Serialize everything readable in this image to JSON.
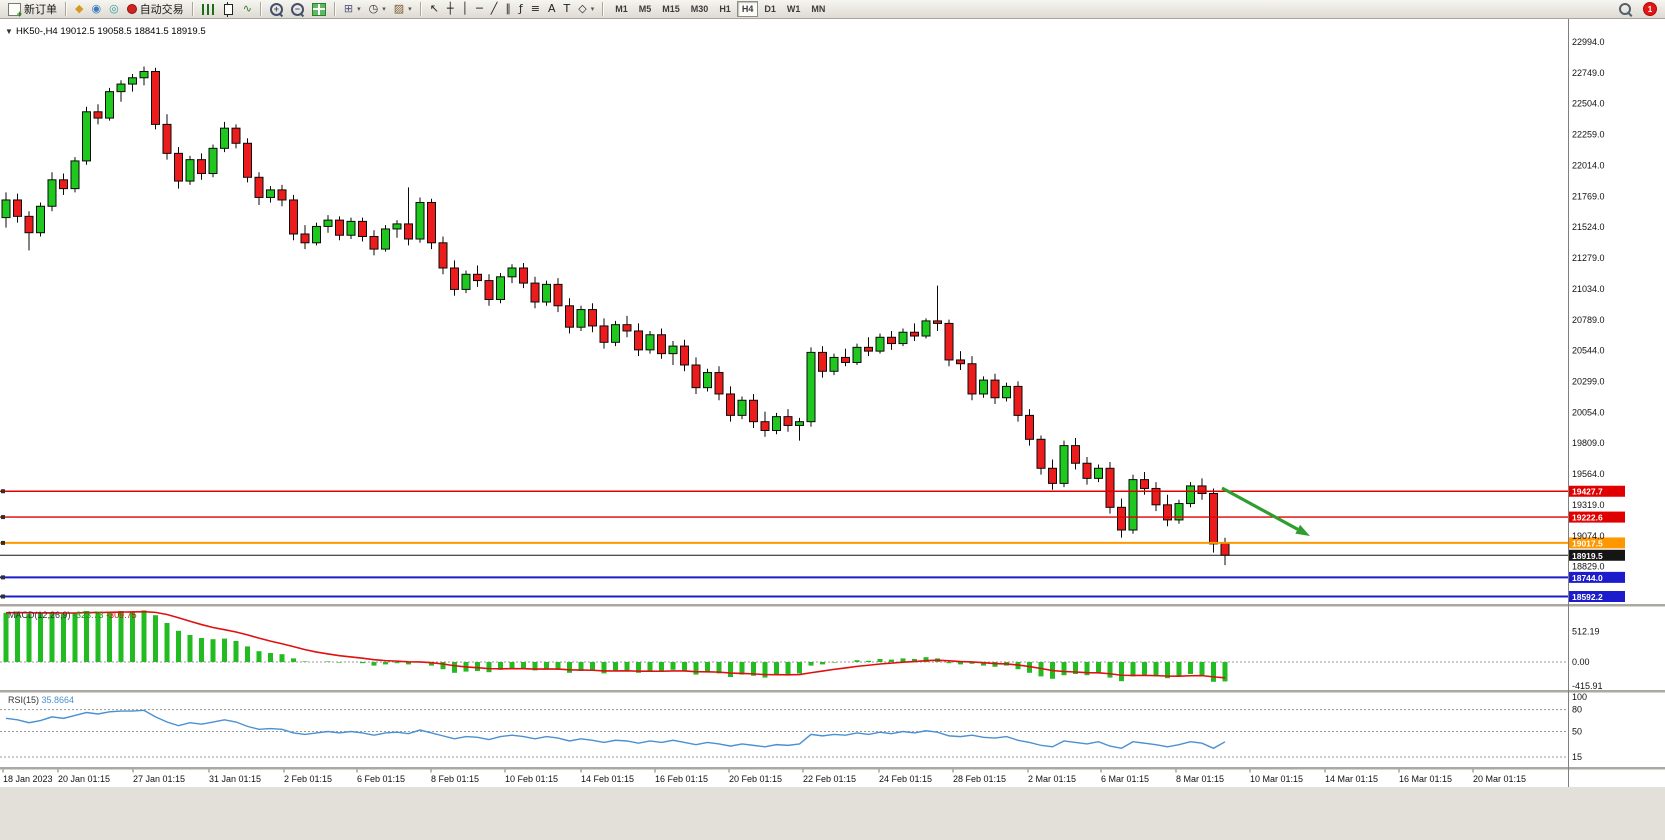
{
  "toolbar": {
    "dropdown_glyph": "▾",
    "timeframes": [
      "M1",
      "M5",
      "M15",
      "M30",
      "H1",
      "H4",
      "D1",
      "W1",
      "MN"
    ],
    "active_timeframe": "H4",
    "notification_count": "1",
    "tools": [
      {
        "name": "new-order-button",
        "label": "新订单",
        "icon": "neworder"
      },
      {
        "name": "sep1",
        "sep": true
      },
      {
        "name": "chart-wizard-icon",
        "glyph": "◆",
        "color": "#d79a20"
      },
      {
        "name": "market-watch-icon",
        "glyph": "◉",
        "color": "#3a7abf"
      },
      {
        "name": "strategy-tester-icon",
        "glyph": "◎",
        "color": "#2f9e9e"
      },
      {
        "name": "autotrading-button",
        "label": "自动交易",
        "icon": "power"
      },
      {
        "name": "sep2",
        "sep": true
      },
      {
        "name": "bar-chart-icon",
        "cssicon": "bars"
      },
      {
        "name": "candlestick-chart-icon",
        "cssicon": "candle"
      },
      {
        "name": "line-chart-icon",
        "glyph": "∿",
        "color": "#2e7d32"
      },
      {
        "name": "sep3",
        "sep": true
      },
      {
        "name": "zoom-in-icon",
        "cssicon": "zoomin"
      },
      {
        "name": "zoom-out-icon",
        "cssicon": "zoomout"
      },
      {
        "name": "tile-windows-icon",
        "cssicon": "grid"
      },
      {
        "name": "sep4",
        "sep": true
      },
      {
        "name": "new-chart-icon",
        "glyph": "⊞",
        "color": "#56567e",
        "dropdown": true
      },
      {
        "name": "period-icon",
        "glyph": "◷",
        "color": "#333333",
        "dropdown": true
      },
      {
        "name": "templates-icon",
        "glyph": "▨",
        "color": "#7a5a2a",
        "dropdown": true
      },
      {
        "name": "sep5",
        "sep": true
      },
      {
        "name": "cursor-icon",
        "glyph": "↖",
        "color": "#222222"
      },
      {
        "name": "crosshair-icon",
        "glyph": "┼",
        "color": "#222222"
      },
      {
        "name": "vertical-line-icon",
        "glyph": "│",
        "color": "#222222"
      },
      {
        "name": "horizontal-line-icon",
        "glyph": "─",
        "color": "#222222"
      },
      {
        "name": "trendline-icon",
        "glyph": "╱",
        "color": "#222222"
      },
      {
        "name": "channel-icon",
        "glyph": "∥",
        "color": "#222222"
      },
      {
        "name": "fibonacci-icon",
        "glyph": "ƒ",
        "color": "#222222"
      },
      {
        "name": "shapes-icon",
        "glyph": "≡",
        "color": "#222222"
      },
      {
        "name": "text-icon",
        "glyph": "A",
        "color": "#222222"
      },
      {
        "name": "arrows-icon",
        "glyph": "T",
        "color": "#222222"
      },
      {
        "name": "objects-dropdown-icon",
        "glyph": "◇",
        "color": "#222222",
        "dropdown": true
      },
      {
        "name": "sep6",
        "sep": true
      }
    ]
  },
  "chart": {
    "oneclick_glyph": "▼",
    "symbol": "HK50-,H4",
    "ohlc_text": "19012.5 19058.5 18841.5 18919.5",
    "price_axis_labels": [
      "22994.0",
      "22749.0",
      "22504.0",
      "22259.0",
      "22014.0",
      "21769.0",
      "21524.0",
      "21279.0",
      "21034.0",
      "20789.0",
      "20544.0",
      "20299.0",
      "20054.0",
      "19809.0",
      "19564.0",
      "19319.0",
      "19074.0",
      "18829.0"
    ],
    "levels": [
      {
        "price": "19427.7",
        "value": 19427.7,
        "color": "#e00000",
        "width": 1.4,
        "is_current": false
      },
      {
        "price": "19222.6",
        "value": 19222.6,
        "color": "#e00000",
        "width": 1.4,
        "is_current": false
      },
      {
        "price": "19017.5",
        "value": 19017.5,
        "color": "#ff9800",
        "width": 2,
        "is_current": false
      },
      {
        "price": "18919.5",
        "value": 18919.5,
        "color": "#151515",
        "width": 1,
        "is_current": true
      },
      {
        "price": "18744.0",
        "value": 18744.0,
        "color": "#1c1ccc",
        "width": 2,
        "is_current": false
      },
      {
        "price": "18592.2",
        "value": 18592.2,
        "color": "#1c1ccc",
        "width": 2,
        "is_current": false
      }
    ],
    "time_axis": [
      {
        "label": "18 Jan 2023",
        "x": 3
      },
      {
        "label": "20 Jan 01:15",
        "x": 58
      },
      {
        "label": "27 Jan 01:15",
        "x": 133
      },
      {
        "label": "31 Jan 01:15",
        "x": 209
      },
      {
        "label": "2 Feb 01:15",
        "x": 284
      },
      {
        "label": "6 Feb 01:15",
        "x": 357
      },
      {
        "label": "8 Feb 01:15",
        "x": 431
      },
      {
        "label": "10 Feb 01:15",
        "x": 505
      },
      {
        "label": "14 Feb 01:15",
        "x": 581
      },
      {
        "label": "16 Feb 01:15",
        "x": 655
      },
      {
        "label": "20 Feb 01:15",
        "x": 729
      },
      {
        "label": "22 Feb 01:15",
        "x": 803
      },
      {
        "label": "24 Feb 01:15",
        "x": 879
      },
      {
        "label": "28 Feb 01:15",
        "x": 953
      },
      {
        "label": "2 Mar 01:15",
        "x": 1028
      },
      {
        "label": "6 Mar 01:15",
        "x": 1101
      },
      {
        "label": "8 Mar 01:15",
        "x": 1176
      },
      {
        "label": "10 Mar 01:15",
        "x": 1250
      },
      {
        "label": "14 Mar 01:15",
        "x": 1325
      },
      {
        "label": "16 Mar 01:15",
        "x": 1399
      },
      {
        "label": "20 Mar 01:15",
        "x": 1473
      }
    ],
    "annotation_arrow": {
      "color": "#2f9e2f",
      "from": [
        1222,
        488
      ],
      "to": [
        1310,
        536
      ]
    },
    "colors": {
      "bull": "#1fc81f",
      "bear": "#ed1c1c",
      "outline": "#0a0a0a",
      "macd_hist": "#22bb22",
      "macd_signal": "#e01010",
      "rsi_line": "#4a90d2",
      "dash": "#9a9a9a"
    }
  },
  "chart_data": [
    {
      "type": "candlestick",
      "name": "HK50- H4 price",
      "ylim": [
        18592,
        23000
      ],
      "y_tick_step": 245,
      "ohlc": [
        [
          21600,
          21800,
          21520,
          21740
        ],
        [
          21740,
          21790,
          21560,
          21610
        ],
        [
          21610,
          21650,
          21340,
          21480
        ],
        [
          21480,
          21720,
          21450,
          21690
        ],
        [
          21690,
          21960,
          21650,
          21900
        ],
        [
          21900,
          21950,
          21780,
          21830
        ],
        [
          21830,
          22080,
          21800,
          22050
        ],
        [
          22050,
          22480,
          22020,
          22440
        ],
        [
          22440,
          22500,
          22340,
          22390
        ],
        [
          22390,
          22630,
          22370,
          22600
        ],
        [
          22600,
          22690,
          22520,
          22660
        ],
        [
          22660,
          22740,
          22600,
          22710
        ],
        [
          22710,
          22800,
          22650,
          22760
        ],
        [
          22760,
          22790,
          22300,
          22340
        ],
        [
          22340,
          22420,
          22060,
          22110
        ],
        [
          22110,
          22160,
          21830,
          21890
        ],
        [
          21890,
          22090,
          21860,
          22060
        ],
        [
          22060,
          22110,
          21900,
          21950
        ],
        [
          21950,
          22180,
          21920,
          22150
        ],
        [
          22150,
          22360,
          22120,
          22310
        ],
        [
          22310,
          22340,
          22150,
          22190
        ],
        [
          22190,
          22230,
          21880,
          21920
        ],
        [
          21920,
          21960,
          21700,
          21760
        ],
        [
          21760,
          21850,
          21720,
          21820
        ],
        [
          21820,
          21860,
          21690,
          21740
        ],
        [
          21740,
          21780,
          21420,
          21470
        ],
        [
          21470,
          21540,
          21350,
          21400
        ],
        [
          21400,
          21560,
          21380,
          21530
        ],
        [
          21530,
          21620,
          21480,
          21580
        ],
        [
          21580,
          21610,
          21420,
          21460
        ],
        [
          21460,
          21600,
          21430,
          21570
        ],
        [
          21570,
          21600,
          21410,
          21450
        ],
        [
          21450,
          21500,
          21300,
          21350
        ],
        [
          21350,
          21540,
          21330,
          21510
        ],
        [
          21510,
          21580,
          21440,
          21550
        ],
        [
          21550,
          21840,
          21380,
          21430
        ],
        [
          21430,
          21760,
          21400,
          21720
        ],
        [
          21720,
          21750,
          21350,
          21400
        ],
        [
          21400,
          21450,
          21150,
          21200
        ],
        [
          21200,
          21260,
          20980,
          21030
        ],
        [
          21030,
          21180,
          21000,
          21150
        ],
        [
          21150,
          21220,
          21050,
          21100
        ],
        [
          21100,
          21150,
          20900,
          20950
        ],
        [
          20950,
          21160,
          20920,
          21130
        ],
        [
          21130,
          21230,
          21080,
          21200
        ],
        [
          21200,
          21240,
          21040,
          21080
        ],
        [
          21080,
          21130,
          20880,
          20930
        ],
        [
          20930,
          21100,
          20900,
          21070
        ],
        [
          21070,
          21120,
          20850,
          20900
        ],
        [
          20900,
          20960,
          20680,
          20730
        ],
        [
          20730,
          20900,
          20700,
          20870
        ],
        [
          20870,
          20920,
          20690,
          20740
        ],
        [
          20740,
          20800,
          20560,
          20610
        ],
        [
          20610,
          20780,
          20580,
          20750
        ],
        [
          20750,
          20820,
          20650,
          20700
        ],
        [
          20700,
          20760,
          20500,
          20550
        ],
        [
          20550,
          20700,
          20520,
          20670
        ],
        [
          20670,
          20720,
          20480,
          20520
        ],
        [
          20520,
          20620,
          20430,
          20580
        ],
        [
          20580,
          20630,
          20380,
          20430
        ],
        [
          20430,
          20490,
          20200,
          20250
        ],
        [
          20250,
          20400,
          20220,
          20370
        ],
        [
          20370,
          20420,
          20150,
          20200
        ],
        [
          20200,
          20260,
          19980,
          20030
        ],
        [
          20030,
          20180,
          20000,
          20150
        ],
        [
          20150,
          20200,
          19930,
          19980
        ],
        [
          19980,
          20060,
          19860,
          19910
        ],
        [
          19910,
          20050,
          19880,
          20020
        ],
        [
          20020,
          20080,
          19900,
          19950
        ],
        [
          19950,
          20010,
          19830,
          19980
        ],
        [
          19980,
          20570,
          19940,
          20530
        ],
        [
          20530,
          20580,
          20330,
          20380
        ],
        [
          20380,
          20520,
          20350,
          20490
        ],
        [
          20490,
          20560,
          20420,
          20450
        ],
        [
          20450,
          20600,
          20430,
          20570
        ],
        [
          20570,
          20650,
          20500,
          20540
        ],
        [
          20540,
          20680,
          20520,
          20650
        ],
        [
          20650,
          20700,
          20550,
          20600
        ],
        [
          20600,
          20720,
          20580,
          20690
        ],
        [
          20690,
          20760,
          20620,
          20660
        ],
        [
          20660,
          20800,
          20640,
          20780
        ],
        [
          20780,
          21060,
          20700,
          20760
        ],
        [
          20760,
          20790,
          20420,
          20470
        ],
        [
          20470,
          20540,
          20390,
          20440
        ],
        [
          20440,
          20500,
          20150,
          20200
        ],
        [
          20200,
          20340,
          20170,
          20310
        ],
        [
          20310,
          20360,
          20120,
          20170
        ],
        [
          20170,
          20290,
          20140,
          20260
        ],
        [
          20260,
          20300,
          19980,
          20030
        ],
        [
          20030,
          20080,
          19790,
          19840
        ],
        [
          19840,
          19870,
          19560,
          19610
        ],
        [
          19610,
          19680,
          19440,
          19490
        ],
        [
          19490,
          19830,
          19460,
          19790
        ],
        [
          19790,
          19850,
          19600,
          19650
        ],
        [
          19650,
          19700,
          19480,
          19530
        ],
        [
          19530,
          19640,
          19500,
          19610
        ],
        [
          19610,
          19660,
          19250,
          19300
        ],
        [
          19300,
          19370,
          19060,
          19120
        ],
        [
          19120,
          19560,
          19090,
          19520
        ],
        [
          19520,
          19580,
          19400,
          19450
        ],
        [
          19450,
          19500,
          19270,
          19320
        ],
        [
          19320,
          19400,
          19150,
          19200
        ],
        [
          19200,
          19360,
          19170,
          19330
        ],
        [
          19330,
          19500,
          19300,
          19470
        ],
        [
          19470,
          19530,
          19360,
          19410
        ],
        [
          19410,
          19450,
          18940,
          19010
        ],
        [
          19012.5,
          19058.5,
          18841.5,
          18919.5
        ]
      ]
    },
    {
      "type": "bar",
      "name": "MACD(12,26,9)",
      "label": "MACD(12,26,9)",
      "value_main": "-323.73",
      "value_signal": "-309.75",
      "ylim": [
        -430,
        870
      ],
      "scale_labels": [
        "512.19",
        "0.00",
        "-415.91"
      ],
      "values": [
        820,
        840,
        800,
        810,
        830,
        800,
        820,
        850,
        830,
        840,
        850,
        840,
        860,
        780,
        650,
        520,
        450,
        400,
        380,
        390,
        350,
        260,
        180,
        150,
        130,
        60,
        10,
        0,
        10,
        -10,
        0,
        -20,
        -60,
        -40,
        -20,
        -40,
        -10,
        -60,
        -120,
        -180,
        -160,
        -150,
        -170,
        -130,
        -100,
        -110,
        -140,
        -110,
        -130,
        -180,
        -150,
        -150,
        -190,
        -150,
        -140,
        -180,
        -150,
        -160,
        -130,
        -150,
        -210,
        -170,
        -190,
        -250,
        -210,
        -230,
        -260,
        -220,
        -220,
        -190,
        -60,
        -40,
        -10,
        0,
        30,
        20,
        50,
        40,
        60,
        50,
        80,
        60,
        -20,
        -40,
        -30,
        -60,
        -80,
        -60,
        -120,
        -180,
        -240,
        -280,
        -220,
        -200,
        -220,
        -190,
        -260,
        -320,
        -240,
        -220,
        -240,
        -270,
        -240,
        -200,
        -220,
        -330,
        -323.73
      ]
    },
    {
      "type": "line",
      "name": "RSI(15)",
      "label": "RSI(15)",
      "value": "35.8664",
      "ylim": [
        0,
        100
      ],
      "levels": [
        80,
        50,
        15
      ],
      "scale_labels": [
        "100",
        "80",
        "50",
        "15"
      ],
      "values": [
        68,
        66,
        62,
        65,
        70,
        68,
        72,
        76,
        74,
        77,
        78,
        78,
        79,
        70,
        63,
        58,
        62,
        60,
        63,
        66,
        63,
        57,
        53,
        54,
        53,
        48,
        46,
        48,
        50,
        48,
        50,
        48,
        45,
        48,
        49,
        47,
        52,
        48,
        44,
        40,
        43,
        42,
        39,
        43,
        45,
        43,
        40,
        43,
        41,
        37,
        40,
        38,
        35,
        38,
        37,
        34,
        37,
        35,
        38,
        35,
        32,
        35,
        33,
        30,
        33,
        31,
        29,
        32,
        31,
        33,
        46,
        44,
        46,
        45,
        48,
        46,
        49,
        47,
        50,
        48,
        51,
        49,
        44,
        43,
        45,
        42,
        41,
        43,
        38,
        35,
        31,
        29,
        37,
        35,
        33,
        36,
        30,
        27,
        36,
        34,
        32,
        29,
        32,
        36,
        34,
        27,
        35.87
      ]
    }
  ]
}
